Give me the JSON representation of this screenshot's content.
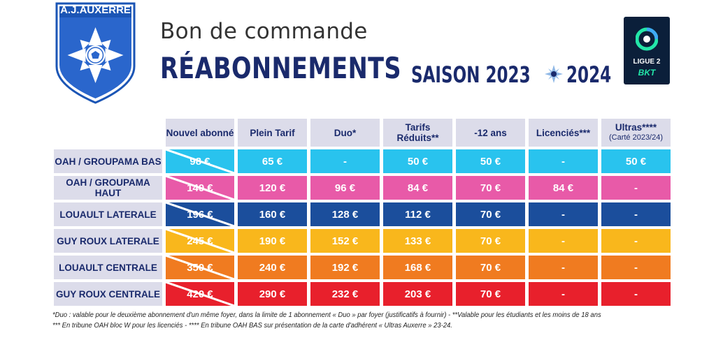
{
  "header": {
    "club_name": "A.J.AUXERRE",
    "subtitle": "Bon de commande",
    "title": "RÉABONNEMENTS",
    "season_label": "SAISON 2023",
    "season_end": "2024",
    "league_line1": "LIGUE 2",
    "league_line2": "BKT"
  },
  "colors": {
    "navy": "#1a2a6c",
    "header_bg": "#dcdcea",
    "rows": [
      "#29c3ee",
      "#e85aa8",
      "#1b4e9c",
      "#f9b71c",
      "#f07b20",
      "#e8202c"
    ]
  },
  "table": {
    "columns": [
      "Nouvel abonné",
      "Plein Tarif",
      "Duo*",
      "Tarifs Réduits**",
      "-12 ans",
      "Licenciés***",
      "Ultras****"
    ],
    "ultras_sub": "(Carté 2023/24)",
    "rows": [
      {
        "zone": "OAH / GROUPAMA BAS",
        "values": [
          "98 €",
          "65 €",
          "-",
          "50 €",
          "50 €",
          "-",
          "50 €"
        ]
      },
      {
        "zone": "OAH / GROUPAMA HAUT",
        "values": [
          "140 €",
          "120 €",
          "96 €",
          "84 €",
          "70 €",
          "84 €",
          "-"
        ]
      },
      {
        "zone": "LOUAULT LATERALE",
        "values": [
          "196 €",
          "160 €",
          "128 €",
          "112 €",
          "70 €",
          "-",
          "-"
        ]
      },
      {
        "zone": "GUY ROUX LATERALE",
        "values": [
          "245 €",
          "190 €",
          "152 €",
          "133 €",
          "70 €",
          "-",
          "-"
        ]
      },
      {
        "zone": "LOUAULT CENTRALE",
        "values": [
          "350 €",
          "240 €",
          "192 €",
          "168 €",
          "70 €",
          "-",
          "-"
        ]
      },
      {
        "zone": "GUY ROUX CENTRALE",
        "values": [
          "420 €",
          "290 €",
          "232 €",
          "203 €",
          "70 €",
          "-",
          "-"
        ]
      }
    ]
  },
  "notes": {
    "line1": "*Duo : valable pour le deuxième abonnement d'un même foyer, dans la limite de 1 abonnement « Duo » par foyer (justificatifs à fournir) - **Valable pour les étudiants et les moins de 18 ans",
    "line2": "*** En tribune OAH bloc W pour les licenciés - **** En tribune OAH BAS sur présentation de la carte d'adhérent « Ultras Auxerre » 23-24."
  }
}
